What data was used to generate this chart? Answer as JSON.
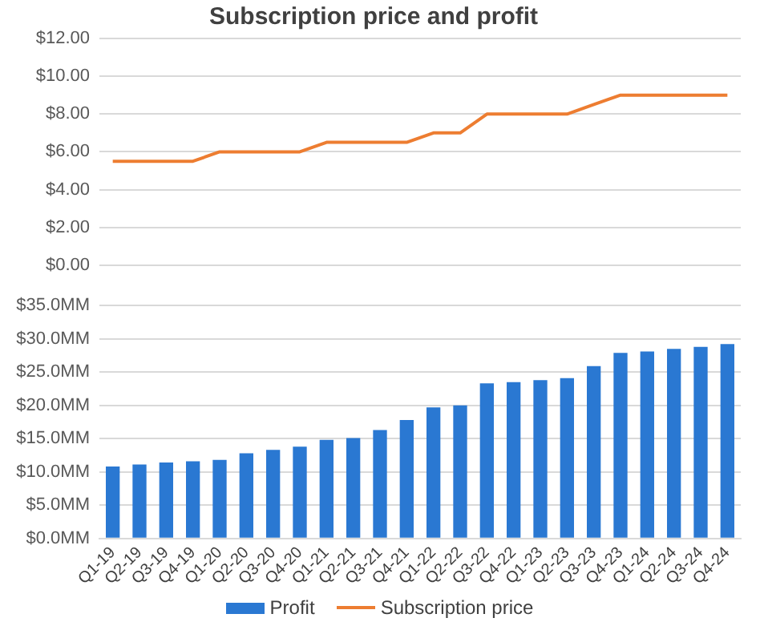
{
  "chart_data": [
    {
      "type": "line",
      "title": "Subscription price and profit",
      "categories": [
        null,
        null,
        null,
        null,
        null,
        null,
        null,
        null,
        null,
        null,
        null,
        null,
        null,
        null,
        null,
        null,
        null,
        null,
        null,
        null,
        null,
        null,
        null,
        null
      ],
      "series": [
        {
          "name": "Subscription price",
          "color": "#ed7d31",
          "values": [
            5.5,
            5.5,
            5.5,
            5.5,
            6,
            6,
            6,
            6,
            6.5,
            6.5,
            6.5,
            6.5,
            7,
            7,
            8,
            8,
            8,
            8,
            8.5,
            9,
            9,
            9,
            9,
            9
          ]
        }
      ],
      "ylim": [
        0,
        12
      ],
      "yticks": [
        {
          "value": 0,
          "label": "$0.00"
        },
        {
          "value": 2,
          "label": "$2.00"
        },
        {
          "value": 4,
          "label": "$4.00"
        },
        {
          "value": 6,
          "label": "$6.00"
        },
        {
          "value": 8,
          "label": "$8.00"
        },
        {
          "value": 10,
          "label": "$10.00"
        },
        {
          "value": 12,
          "label": "$12.00"
        }
      ],
      "grid": "y",
      "tick_labels": "y",
      "marker": "none",
      "legend": "bottom"
    },
    {
      "type": "bar",
      "categories": [
        "Q1-19",
        "Q2-19",
        "Q3-19",
        "Q4-19",
        "Q1-20",
        "Q2-20",
        "Q3-20",
        "Q4-20",
        "Q1-21",
        "Q2-21",
        "Q3-21",
        "Q4-21",
        "Q1-22",
        "Q2-22",
        "Q3-22",
        "Q4-22",
        "Q1-23",
        "Q2-23",
        "Q3-23",
        "Q4-23",
        "Q1-24",
        "Q2-24",
        "Q3-24",
        "Q4-24"
      ],
      "series": [
        {
          "name": "Profit",
          "color": "#2a78d2",
          "values": [
            10.8,
            11.1,
            11.4,
            11.6,
            11.8,
            12.8,
            13.3,
            13.8,
            14.8,
            15.1,
            16.3,
            17.8,
            19.7,
            20.0,
            23.3,
            23.5,
            23.8,
            24.1,
            25.9,
            27.9,
            28.1,
            28.5,
            28.8,
            29.2
          ]
        }
      ],
      "ylim": [
        0,
        35
      ],
      "yticks": [
        {
          "value": 0,
          "label": "$0.0MM"
        },
        {
          "value": 5,
          "label": "$5.0MM"
        },
        {
          "value": 10,
          "label": "$10.0MM"
        },
        {
          "value": 15,
          "label": "$15.0MM"
        },
        {
          "value": 20,
          "label": "$20.0MM"
        },
        {
          "value": 25,
          "label": "$25.0MM"
        },
        {
          "value": 30,
          "label": "$30.0MM"
        },
        {
          "value": 35,
          "label": "$35.0MM"
        }
      ],
      "grid": "y",
      "legend": "bottom"
    }
  ]
}
